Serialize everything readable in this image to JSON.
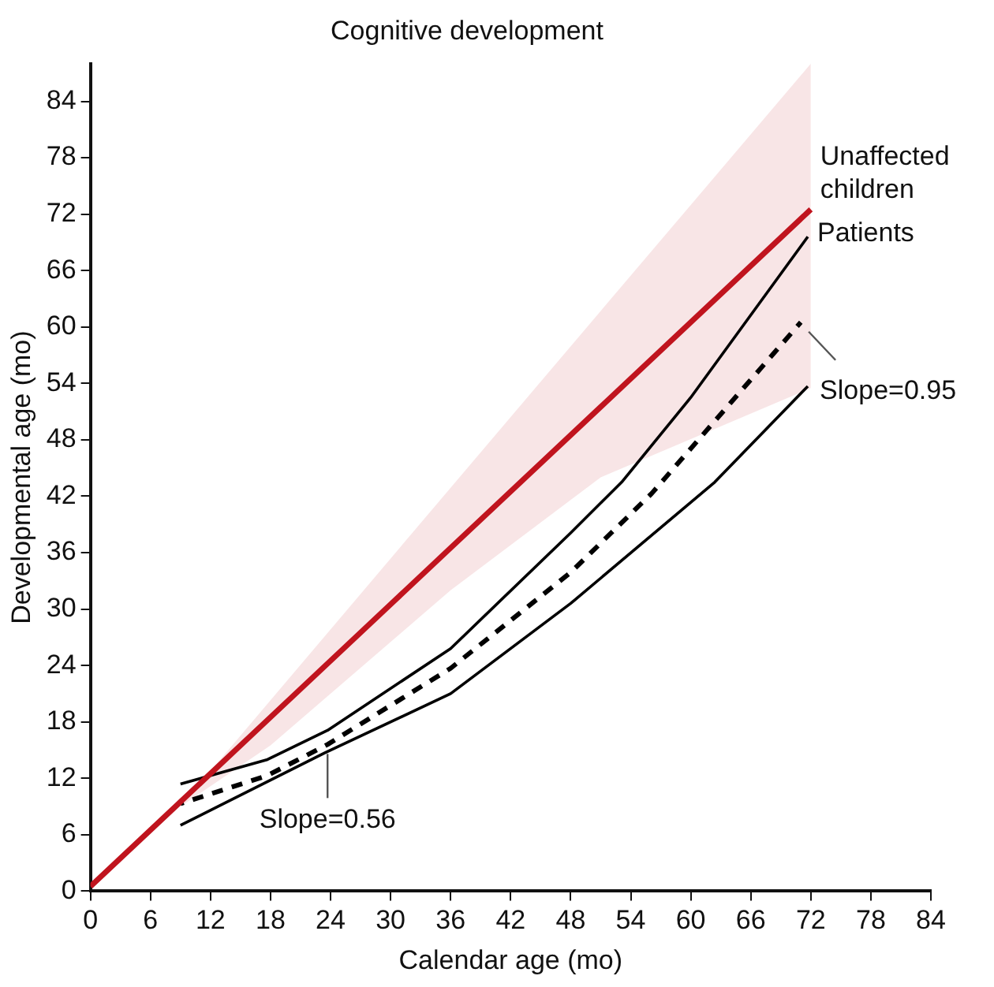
{
  "chart_data": {
    "type": "line",
    "title": "Cognitive development",
    "xlabel": "Calendar age (mo)",
    "ylabel": "Developmental age (mo)",
    "xlim": [
      0,
      84
    ],
    "xticks": [
      0,
      6,
      12,
      18,
      24,
      30,
      36,
      42,
      48,
      54,
      60,
      66,
      72,
      78,
      84
    ],
    "ylim": [
      0,
      88
    ],
    "yticks": [
      0,
      6,
      12,
      18,
      24,
      30,
      36,
      42,
      48,
      54,
      60,
      66,
      72,
      78,
      84
    ],
    "grid": false,
    "legend": false,
    "marker": "none",
    "series": [
      {
        "name": "Unaffected children",
        "color": "#c0141e",
        "x": [
          0,
          9,
          18,
          36,
          51,
          72
        ],
        "values": [
          0.5,
          9.5,
          18.5,
          36.5,
          51.5,
          72.5
        ],
        "lower": [
          null,
          9,
          15.5,
          32,
          44,
          53.5
        ],
        "upper": [
          null,
          9,
          20.3,
          42.9,
          61.7,
          88
        ]
      },
      {
        "name": "Patients",
        "color": "#000000",
        "x": [
          9,
          17.7,
          23.7,
          36,
          48,
          53.1,
          60,
          71.7
        ],
        "values": [
          11.4,
          14,
          17.1,
          25.8,
          38.1,
          43.5,
          52.5,
          69.6
        ]
      },
      {
        "color": "#000000",
        "line_style": "dashed",
        "x": [
          9,
          17.7,
          23.7,
          36,
          48,
          56.1,
          71
        ],
        "values": [
          9.3,
          12.3,
          15.6,
          23.7,
          33.9,
          42.3,
          60.5
        ]
      },
      {
        "color": "#000000",
        "x": [
          9,
          23.4,
          36,
          48,
          62.4,
          71.7
        ],
        "values": [
          7,
          14.7,
          21,
          30.6,
          43.5,
          53.7
        ]
      }
    ],
    "annotations": [
      {
        "text": "Slope=0.95",
        "x": 71,
        "y": 60.5
      },
      {
        "text": "Slope=0.56",
        "x": 23.7,
        "y": 15.6
      }
    ]
  }
}
